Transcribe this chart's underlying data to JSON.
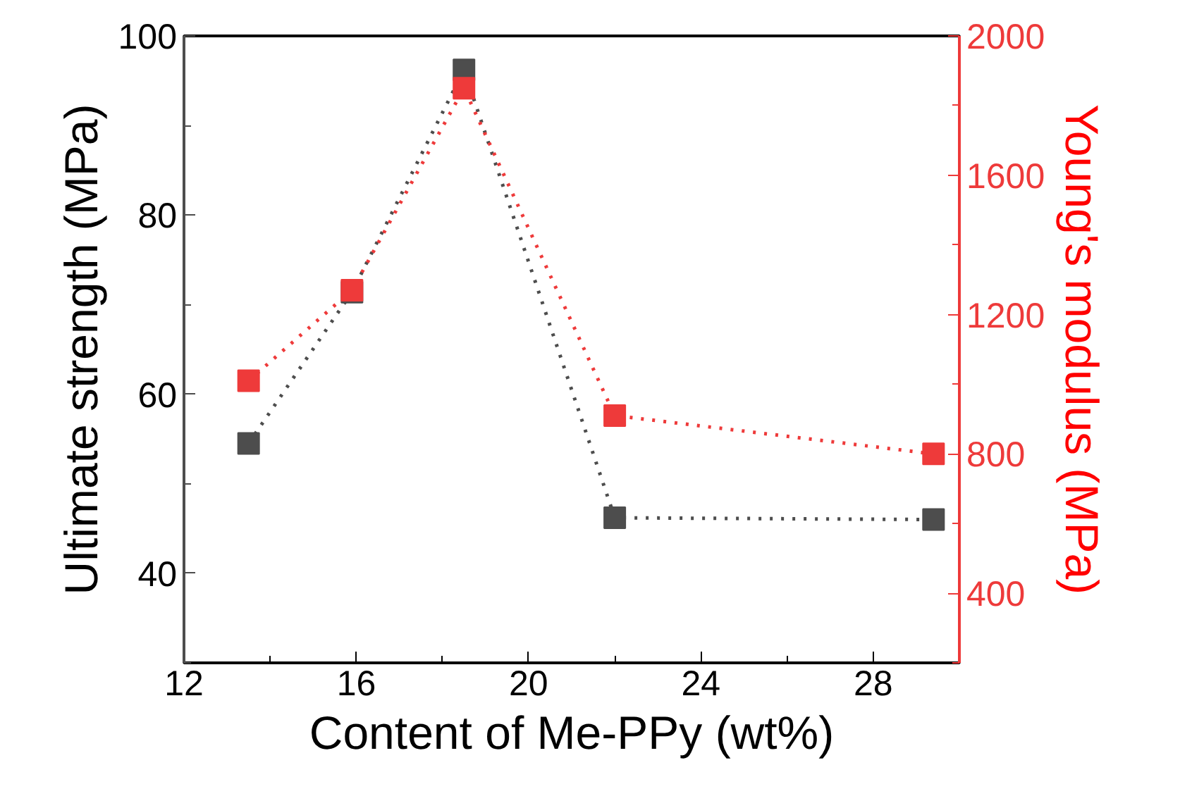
{
  "chart_data": {
    "type": "line",
    "xlabel": "Content of Me-PPy (wt%)",
    "ylabel": "Ultimate strength (MPa)",
    "y2label": "Young's modulus (MPa)",
    "xlim": [
      12,
      30
    ],
    "xticks": [
      12,
      16,
      20,
      24,
      28
    ],
    "ylim": [
      30,
      100
    ],
    "yticks": [
      40,
      60,
      80,
      100
    ],
    "y2lim": [
      200,
      2000
    ],
    "y2ticks": [
      400,
      800,
      1200,
      1600,
      2000
    ],
    "marker": "square",
    "line_style": "dotted",
    "grid": false,
    "series": [
      {
        "color": "#4d4d4d",
        "x": [
          13.5,
          15.9,
          18.5,
          22.0,
          29.4
        ],
        "values": [
          54.5,
          71.4,
          96.2,
          46.2,
          46.0
        ]
      },
      {
        "color": "#ee3a3a",
        "axis": "y2",
        "x": [
          13.5,
          15.9,
          18.5,
          22.0,
          29.4
        ],
        "values": [
          1010,
          1270,
          1850,
          910,
          800
        ]
      }
    ]
  }
}
